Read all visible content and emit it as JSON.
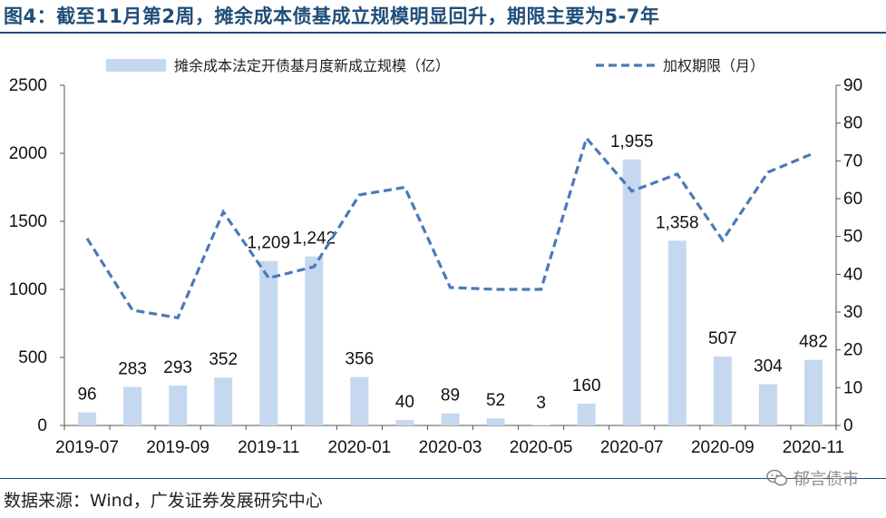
{
  "title": "图4：截至11月第2周，摊余成本债基成立规模明显回升，期限主要为5-7年",
  "source": "数据来源：Wind，广发证券发展研究中心",
  "watermark": "郁言债市",
  "colors": {
    "bar": "#c5d8f0",
    "line": "#4a7ab8",
    "title": "#1f4e79"
  },
  "chart_data": {
    "type": "bar+line",
    "categories": [
      "2019-07",
      "2019-08",
      "2019-09",
      "2019-10",
      "2019-11",
      "2019-12",
      "2020-01",
      "2020-02",
      "2020-03",
      "2020-04",
      "2020-05",
      "2020-06",
      "2020-07",
      "2020-08",
      "2020-09",
      "2020-10",
      "2020-11"
    ],
    "x_tick_labels": [
      "2019-07",
      "",
      "2019-09",
      "",
      "2019-11",
      "",
      "2020-01",
      "",
      "2020-03",
      "",
      "2020-05",
      "",
      "2020-07",
      "",
      "2020-09",
      "",
      "2020-11"
    ],
    "series": [
      {
        "name": "摊余成本法定开债基月度新成立规模（亿）",
        "type": "bar",
        "axis": "left",
        "values": [
          96,
          283,
          293,
          352,
          1209,
          1242,
          356,
          40,
          89,
          52,
          3,
          160,
          1955,
          1358,
          507,
          304,
          482
        ],
        "labels": [
          "96",
          "283",
          "293",
          "352",
          "1,209",
          "1,242",
          "356",
          "40",
          "89",
          "52",
          "3",
          "160",
          "1,955",
          "1,358",
          "507",
          "304",
          "482"
        ]
      },
      {
        "name": "加权期限（月）",
        "type": "line",
        "style": "dashed",
        "axis": "right",
        "values": [
          49.5,
          30.5,
          28.5,
          56.5,
          39,
          42,
          61,
          63,
          36.5,
          36,
          36,
          76,
          62,
          66.5,
          49,
          67,
          72
        ]
      }
    ],
    "y_left": {
      "min": 0,
      "max": 2500,
      "ticks": [
        "0",
        "500",
        "1000",
        "1500",
        "2000",
        "2500"
      ]
    },
    "y_right": {
      "min": 0,
      "max": 90,
      "ticks": [
        "0",
        "10",
        "20",
        "30",
        "40",
        "50",
        "60",
        "70",
        "80",
        "90"
      ]
    },
    "legend_position": "top"
  }
}
